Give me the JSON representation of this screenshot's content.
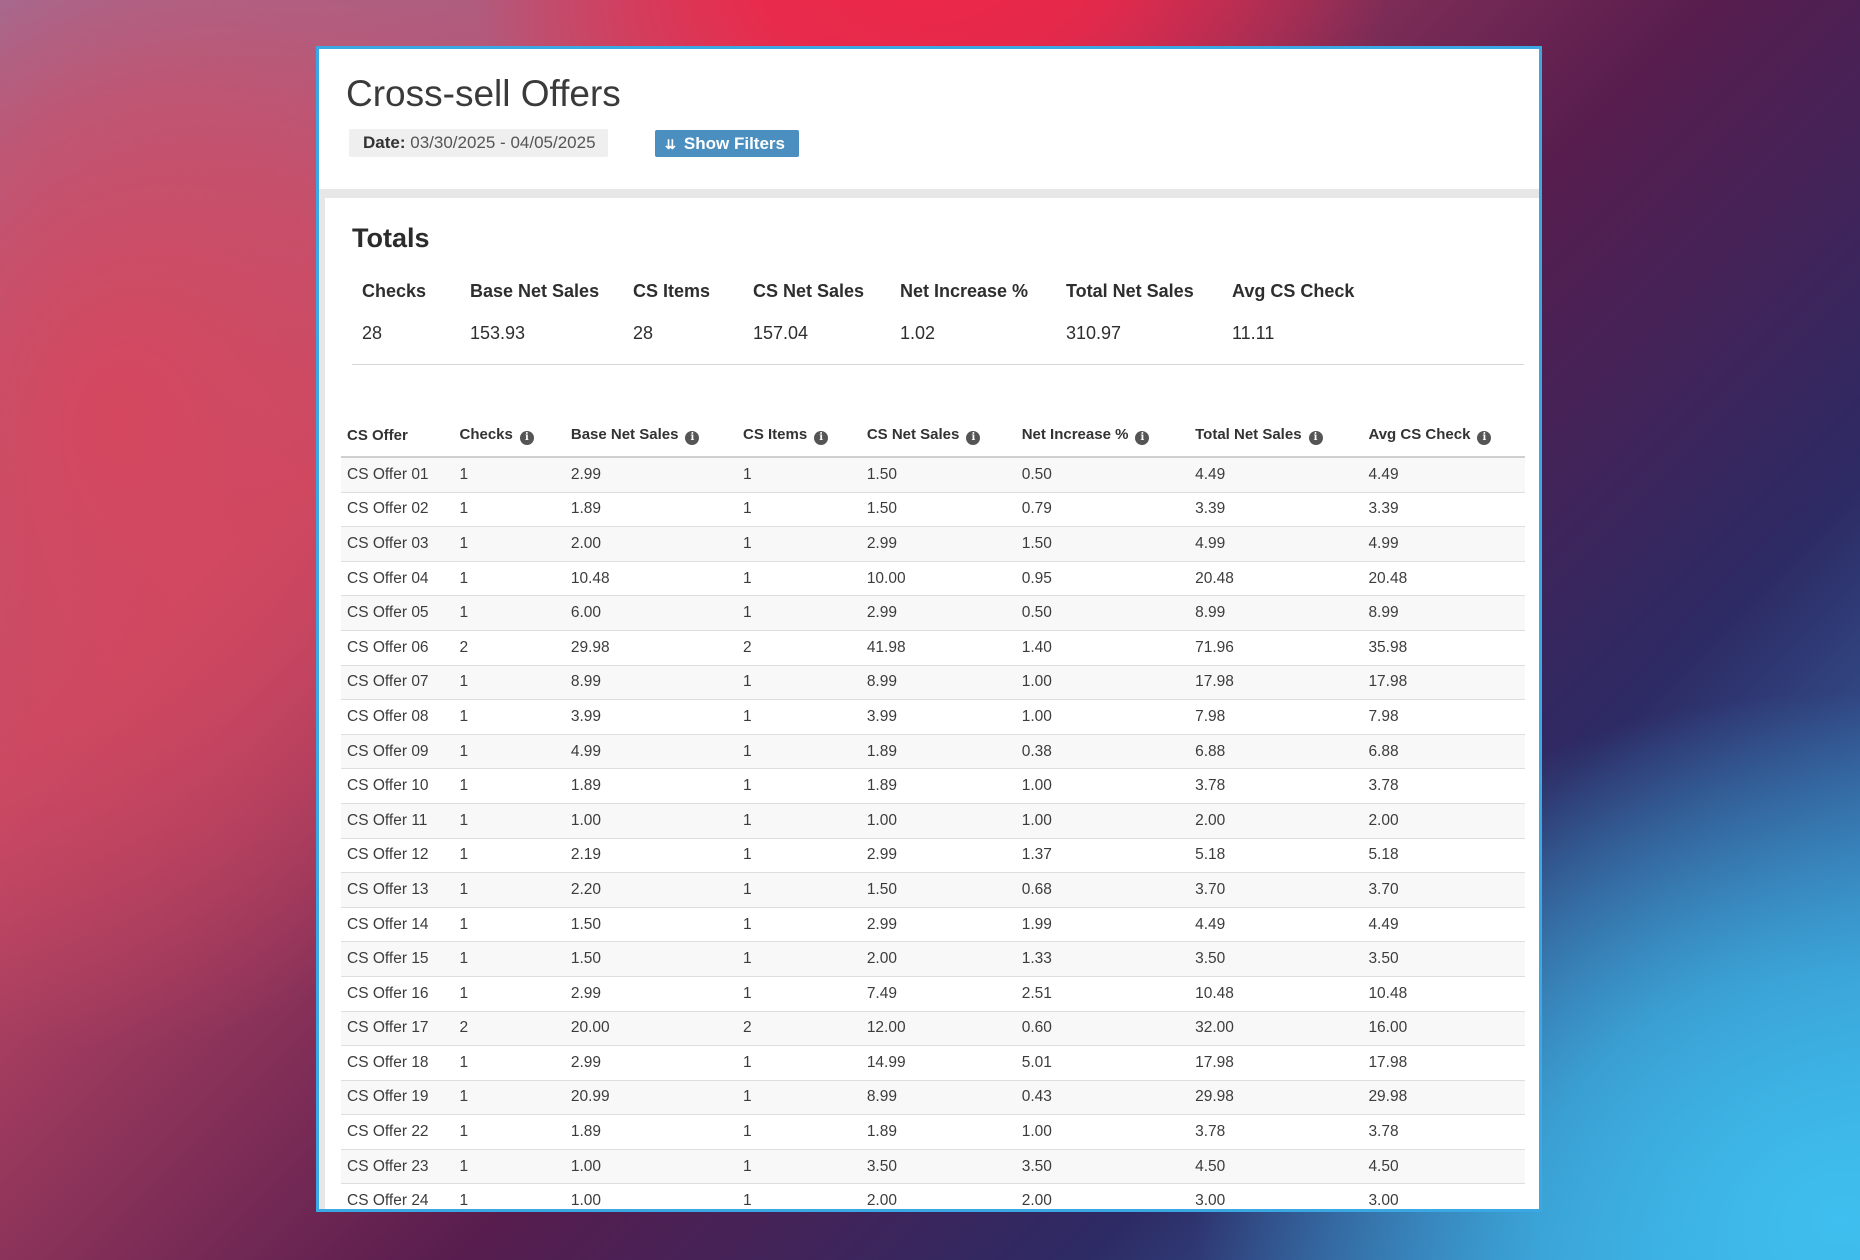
{
  "page": {
    "title": "Cross-sell Offers",
    "date_label": "Date:",
    "date_value": "03/30/2025 - 04/05/2025",
    "filter_button": "Show Filters",
    "filter_icon": "chevron-double-down-icon"
  },
  "totals": {
    "heading": "Totals",
    "columns": [
      "Checks",
      "Base Net Sales",
      "CS Items",
      "CS Net Sales",
      "Net Increase %",
      "Total Net Sales",
      "Avg CS Check"
    ],
    "values": [
      "28",
      "153.93",
      "28",
      "157.04",
      "1.02",
      "310.97",
      "11.11"
    ]
  },
  "table": {
    "info_icon": "info-icon",
    "headers": [
      "CS Offer",
      "Checks",
      "Base Net Sales",
      "CS Items",
      "CS Net Sales",
      "Net Increase %",
      "Total Net Sales",
      "Avg CS Check"
    ],
    "rows": [
      [
        "CS Offer 01",
        "1",
        "2.99",
        "1",
        "1.50",
        "0.50",
        "4.49",
        "4.49"
      ],
      [
        "CS Offer 02",
        "1",
        "1.89",
        "1",
        "1.50",
        "0.79",
        "3.39",
        "3.39"
      ],
      [
        "CS Offer 03",
        "1",
        "2.00",
        "1",
        "2.99",
        "1.50",
        "4.99",
        "4.99"
      ],
      [
        "CS Offer 04",
        "1",
        "10.48",
        "1",
        "10.00",
        "0.95",
        "20.48",
        "20.48"
      ],
      [
        "CS Offer 05",
        "1",
        "6.00",
        "1",
        "2.99",
        "0.50",
        "8.99",
        "8.99"
      ],
      [
        "CS Offer 06",
        "2",
        "29.98",
        "2",
        "41.98",
        "1.40",
        "71.96",
        "35.98"
      ],
      [
        "CS Offer 07",
        "1",
        "8.99",
        "1",
        "8.99",
        "1.00",
        "17.98",
        "17.98"
      ],
      [
        "CS Offer 08",
        "1",
        "3.99",
        "1",
        "3.99",
        "1.00",
        "7.98",
        "7.98"
      ],
      [
        "CS Offer 09",
        "1",
        "4.99",
        "1",
        "1.89",
        "0.38",
        "6.88",
        "6.88"
      ],
      [
        "CS Offer 10",
        "1",
        "1.89",
        "1",
        "1.89",
        "1.00",
        "3.78",
        "3.78"
      ],
      [
        "CS Offer 11",
        "1",
        "1.00",
        "1",
        "1.00",
        "1.00",
        "2.00",
        "2.00"
      ],
      [
        "CS Offer 12",
        "1",
        "2.19",
        "1",
        "2.99",
        "1.37",
        "5.18",
        "5.18"
      ],
      [
        "CS Offer 13",
        "1",
        "2.20",
        "1",
        "1.50",
        "0.68",
        "3.70",
        "3.70"
      ],
      [
        "CS Offer 14",
        "1",
        "1.50",
        "1",
        "2.99",
        "1.99",
        "4.49",
        "4.49"
      ],
      [
        "CS Offer 15",
        "1",
        "1.50",
        "1",
        "2.00",
        "1.33",
        "3.50",
        "3.50"
      ],
      [
        "CS Offer 16",
        "1",
        "2.99",
        "1",
        "7.49",
        "2.51",
        "10.48",
        "10.48"
      ],
      [
        "CS Offer 17",
        "2",
        "20.00",
        "2",
        "12.00",
        "0.60",
        "32.00",
        "16.00"
      ],
      [
        "CS Offer 18",
        "1",
        "2.99",
        "1",
        "14.99",
        "5.01",
        "17.98",
        "17.98"
      ],
      [
        "CS Offer 19",
        "1",
        "20.99",
        "1",
        "8.99",
        "0.43",
        "29.98",
        "29.98"
      ],
      [
        "CS Offer 22",
        "1",
        "1.89",
        "1",
        "1.89",
        "1.00",
        "3.78",
        "3.78"
      ],
      [
        "CS Offer 23",
        "1",
        "1.00",
        "1",
        "3.50",
        "3.50",
        "4.50",
        "4.50"
      ],
      [
        "CS Offer 24",
        "1",
        "1.00",
        "1",
        "2.00",
        "2.00",
        "3.00",
        "3.00"
      ]
    ]
  },
  "colors": {
    "window_border": "#3ba7e3",
    "filter_button": "#4b8fc0"
  }
}
